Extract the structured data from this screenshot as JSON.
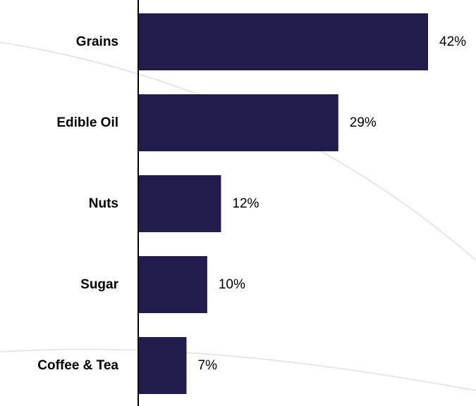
{
  "colors": {
    "bar": "#221c4c",
    "axis": "#000000",
    "background": "#ffffff",
    "decor_curve": "#e6e6e6"
  },
  "chart_data": {
    "type": "bar",
    "orientation": "horizontal",
    "categories": [
      "Grains",
      "Edible Oil",
      "Nuts",
      "Sugar",
      "Coffee & Tea"
    ],
    "values": [
      42,
      29,
      12,
      10,
      7
    ],
    "value_labels": [
      "42%",
      "29%",
      "12%",
      "10%",
      "7%"
    ],
    "unit": "%",
    "grid": false,
    "legend": "none"
  }
}
